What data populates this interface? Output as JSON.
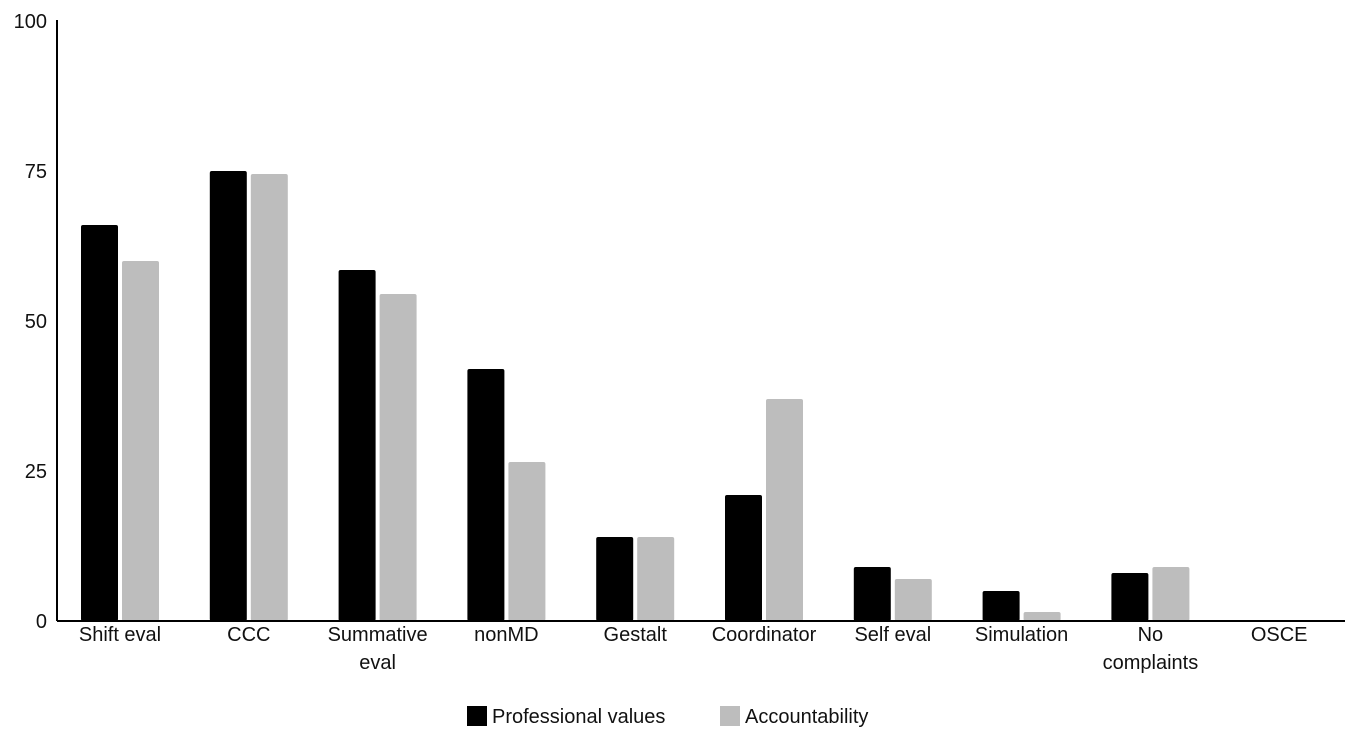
{
  "chart_data": {
    "type": "bar",
    "categories": [
      [
        "Shift eval"
      ],
      [
        "CCC"
      ],
      [
        "Summative",
        "eval"
      ],
      [
        "nonMD"
      ],
      [
        "Gestalt"
      ],
      [
        "Coordinator"
      ],
      [
        "Self eval"
      ],
      [
        "Simulation"
      ],
      [
        "No",
        "complaints"
      ],
      [
        "OSCE"
      ]
    ],
    "series": [
      {
        "name": "Professional values",
        "color": "#000000",
        "values": [
          66,
          75,
          58.5,
          42,
          14,
          21,
          9,
          5,
          8,
          0
        ]
      },
      {
        "name": "Accountability",
        "color": "#bdbdbd",
        "values": [
          60,
          74.5,
          54.5,
          26.5,
          14,
          37,
          7,
          1.5,
          9,
          0
        ]
      }
    ],
    "ylim": [
      0,
      100
    ],
    "yticks": [
      0,
      25,
      50,
      75,
      100
    ],
    "grid": false,
    "legend_position": "bottom-center",
    "title": "",
    "xlabel": "",
    "ylabel": ""
  }
}
